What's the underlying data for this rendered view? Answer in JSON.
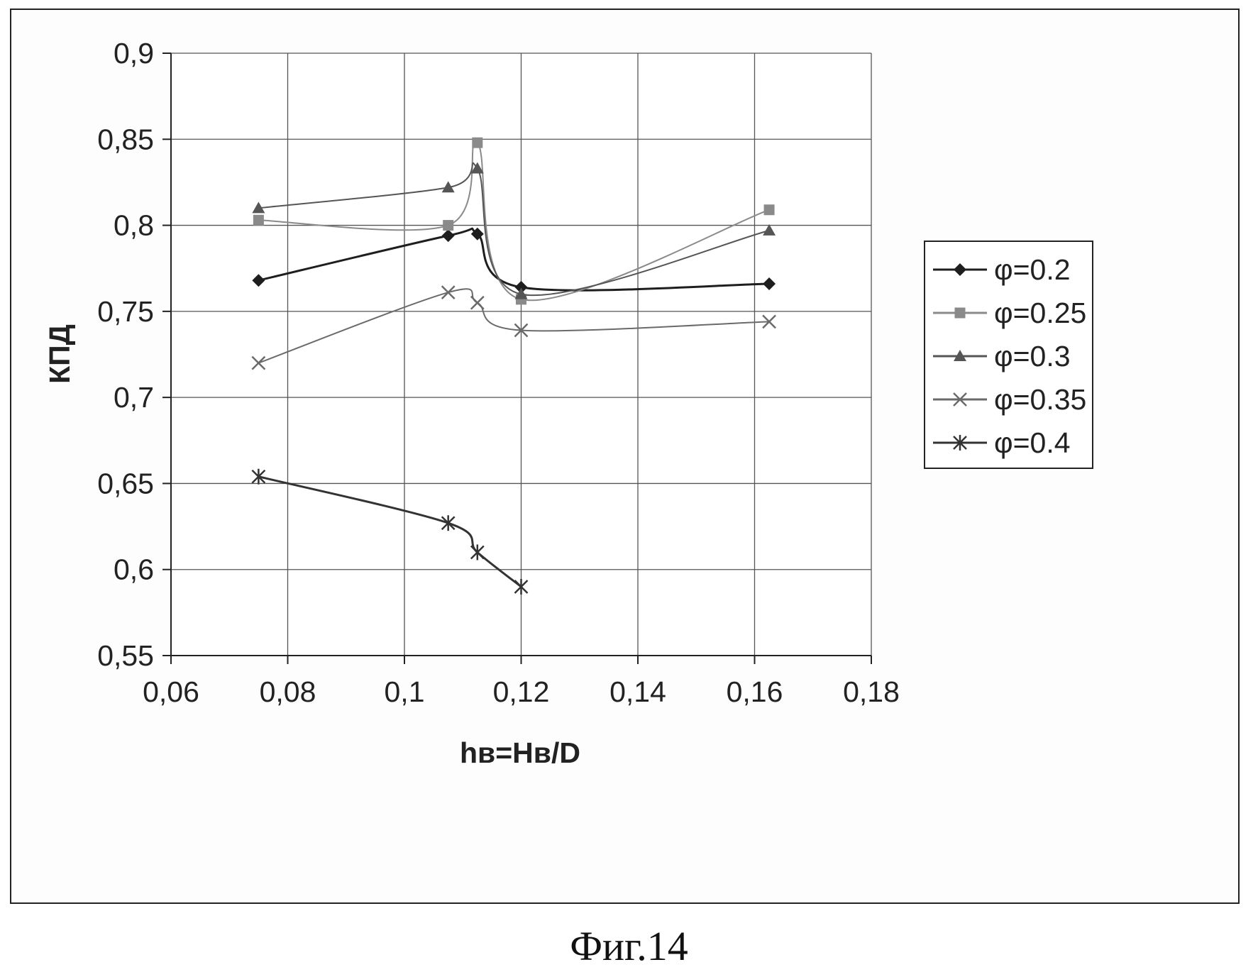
{
  "chart_data": {
    "type": "line",
    "title": "",
    "xlabel": "hв=Hв/D",
    "ylabel": "КПД",
    "xlim": [
      0.06,
      0.18
    ],
    "ylim": [
      0.55,
      0.9
    ],
    "x_ticks": [
      0.06,
      0.08,
      0.1,
      0.12,
      0.14,
      0.16,
      0.18
    ],
    "x_tick_labels": [
      "0,06",
      "0,08",
      "0,1",
      "0,12",
      "0,14",
      "0,16",
      "0,18"
    ],
    "y_ticks": [
      0.55,
      0.6,
      0.65,
      0.7,
      0.75,
      0.8,
      0.85,
      0.9
    ],
    "y_tick_labels": [
      "0,55",
      "0,6",
      "0,65",
      "0,7",
      "0,75",
      "0,8",
      "0,85",
      "0,9"
    ],
    "grid": true,
    "legend_position": "right",
    "series": [
      {
        "name": "φ=0.2",
        "marker": "diamond",
        "color": "#1e1e1e",
        "x": [
          0.075,
          0.1075,
          0.1125,
          0.12,
          0.1625
        ],
        "y": [
          0.768,
          0.794,
          0.795,
          0.764,
          0.766
        ]
      },
      {
        "name": "φ=0.25",
        "marker": "square",
        "color": "#8a8a8a",
        "x": [
          0.075,
          0.1075,
          0.1125,
          0.12,
          0.1625
        ],
        "y": [
          0.803,
          0.8,
          0.848,
          0.757,
          0.809
        ]
      },
      {
        "name": "φ=0.3",
        "marker": "triangle",
        "color": "#555555",
        "x": [
          0.075,
          0.1075,
          0.1125,
          0.12,
          0.1625
        ],
        "y": [
          0.81,
          0.822,
          0.833,
          0.76,
          0.797
        ]
      },
      {
        "name": "φ=0.35",
        "marker": "x",
        "color": "#6a6a6a",
        "x": [
          0.075,
          0.1075,
          0.1125,
          0.12,
          0.1625
        ],
        "y": [
          0.72,
          0.761,
          0.755,
          0.739,
          0.744
        ]
      },
      {
        "name": "φ=0.4",
        "marker": "asterisk",
        "color": "#333333",
        "x": [
          0.075,
          0.1075,
          0.1125,
          0.12
        ],
        "y": [
          0.654,
          0.627,
          0.61,
          0.59
        ]
      }
    ]
  },
  "caption": "Фиг.14"
}
